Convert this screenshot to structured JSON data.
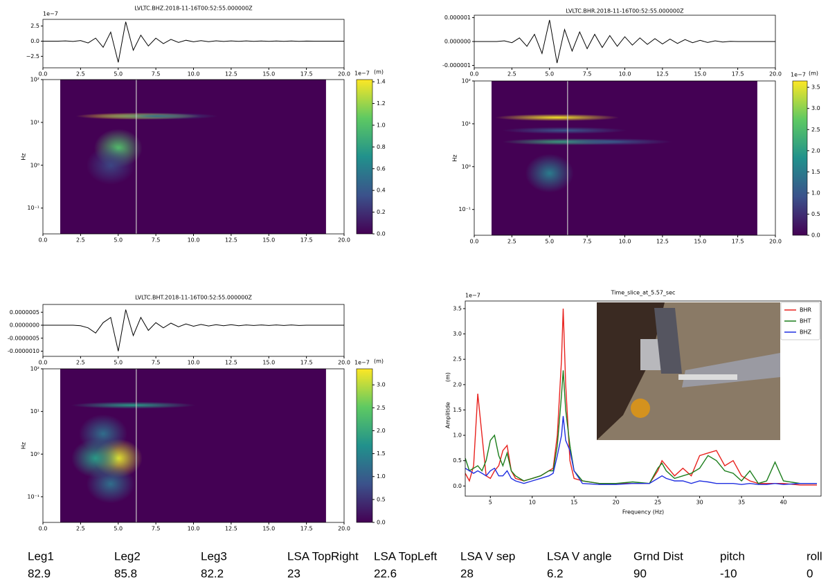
{
  "chart_data": [
    {
      "type": "line",
      "title": "LVLTC.BHZ.2018-11-16T00:52:55.000000Z",
      "y_offset_label": "1e−7",
      "color": "#000000",
      "x": [
        0,
        0.5,
        1,
        1.5,
        2,
        2.5,
        3,
        3.5,
        4,
        4.5,
        5,
        5.5,
        6,
        6.5,
        7,
        7.5,
        8,
        8.5,
        9,
        9.5,
        10,
        10.5,
        11,
        11.5,
        12,
        12.5,
        13,
        13.5,
        14,
        14.5,
        15,
        15.5,
        16,
        16.5,
        17,
        17.5,
        18,
        18.5,
        19,
        19.5,
        20
      ],
      "values": [
        0,
        0,
        0,
        0.05,
        -0.05,
        0.1,
        -0.3,
        0.5,
        -1.0,
        1.5,
        -3.5,
        3.2,
        -1.5,
        1.0,
        -0.8,
        0.5,
        -0.4,
        0.3,
        -0.2,
        0.15,
        -0.1,
        0.08,
        -0.08,
        0.06,
        -0.05,
        0.05,
        -0.04,
        0.04,
        -0.03,
        0.03,
        -0.03,
        0.02,
        -0.02,
        0.02,
        -0.02,
        0.01,
        0,
        0,
        0,
        0,
        0
      ],
      "xlim": [
        0,
        20
      ],
      "xticks": [
        {
          "value": 0,
          "label": "0.0"
        },
        2.5,
        {
          "value": 5,
          "label": "5.0"
        },
        7.5,
        {
          "value": 10,
          "label": "10.0"
        },
        12.5,
        {
          "value": 15,
          "label": "15.0"
        },
        17.5,
        {
          "value": 20,
          "label": "20.0"
        }
      ],
      "ylim": [
        -4.4,
        3.6
      ],
      "yticks": [
        {
          "value": -2.5,
          "label": "−2.5"
        },
        {
          "value": 0,
          "label": "0.0"
        },
        2.5
      ]
    },
    {
      "type": "heatmap",
      "ylabel": "Hz",
      "log_y": true,
      "time_range": [
        1.15,
        18.8
      ],
      "marker_x": 6.2,
      "x": [
        6.3,
        5.0,
        4.5,
        7.5
      ],
      "y": [
        14,
        2.5,
        1.0,
        14
      ],
      "values": [
        1.42,
        1.0,
        0.3,
        0.5
      ],
      "xlim": [
        0,
        20
      ],
      "xticks": [
        {
          "value": 0,
          "label": "0.0"
        },
        2.5,
        {
          "value": 5,
          "label": "5.0"
        },
        7.5,
        {
          "value": 10,
          "label": "10.0"
        },
        12.5,
        {
          "value": 15,
          "label": "15.0"
        },
        17.5,
        {
          "value": 20,
          "label": "20.0"
        }
      ],
      "ylim": [
        0.025,
        100
      ],
      "yticks": [
        {
          "value": 0.1,
          "label": "10⁻¹"
        },
        {
          "value": 1,
          "label": "10⁰"
        },
        {
          "value": 10,
          "label": "10¹"
        },
        {
          "value": 100,
          "label": "10²"
        }
      ],
      "colorbar": {
        "label": "(m)",
        "offset_label": "1e−7",
        "lim": [
          0,
          1.42
        ],
        "ticks": [
          {
            "value": 0,
            "label": "0.0"
          },
          0.2,
          0.4,
          0.6,
          0.8,
          {
            "value": 1,
            "label": "1.0"
          },
          1.2,
          1.4
        ]
      }
    },
    {
      "type": "line",
      "title": "LVLTC.BHR.2018-11-16T00:52:55.000000Z",
      "color": "#000000",
      "x": [
        0,
        0.5,
        1,
        1.5,
        2,
        2.5,
        3,
        3.5,
        4,
        4.5,
        5,
        5.5,
        6,
        6.5,
        7,
        7.5,
        8,
        8.5,
        9,
        9.5,
        10,
        10.5,
        11,
        11.5,
        12,
        12.5,
        13,
        13.5,
        14,
        14.5,
        15,
        15.5,
        16,
        16.5,
        17,
        17.5,
        18,
        18.5,
        19,
        19.5,
        20
      ],
      "values": [
        0,
        0,
        0,
        0,
        3e-08,
        -5e-08,
        1.5e-07,
        -2e-07,
        3e-07,
        -5e-07,
        9e-07,
        -9e-07,
        5e-07,
        -4e-07,
        4e-07,
        -3e-07,
        3e-07,
        -2.5e-07,
        2.5e-07,
        -2e-07,
        2e-07,
        -1.5e-07,
        1.5e-07,
        -1.2e-07,
        1.2e-07,
        -1e-07,
        1e-07,
        -8e-08,
        8e-08,
        -5e-08,
        5e-08,
        -4e-08,
        3e-08,
        -2e-08,
        1e-08,
        0,
        0,
        0,
        0,
        0,
        0
      ],
      "xlim": [
        0,
        20
      ],
      "xticks": [
        {
          "value": 0,
          "label": "0.0"
        },
        2.5,
        {
          "value": 5,
          "label": "5.0"
        },
        7.5,
        {
          "value": 10,
          "label": "10.0"
        },
        12.5,
        {
          "value": 15,
          "label": "15.0"
        },
        17.5,
        {
          "value": 20,
          "label": "20.0"
        }
      ],
      "ylim": [
        -1.1e-06,
        1.1e-06
      ],
      "yticks": [
        {
          "value": -1e-06,
          "label": "-0.000001"
        },
        {
          "value": 0,
          "label": "0.000000"
        },
        {
          "value": 1e-06,
          "label": "0.000001"
        }
      ]
    },
    {
      "type": "heatmap",
      "ylabel": "Hz",
      "log_y": true,
      "time_range": [
        1.15,
        18.8
      ],
      "marker_x": 6.2,
      "x": [
        5.5,
        5.0,
        6.0,
        9.0,
        6.0
      ],
      "y": [
        14,
        0.7,
        3.8,
        3.8,
        7
      ],
      "values": [
        3.6,
        1.5,
        2.2,
        1.0,
        1.0
      ],
      "xlim": [
        0,
        20
      ],
      "xticks": [
        {
          "value": 0,
          "label": "0.0"
        },
        2.5,
        {
          "value": 5,
          "label": "5.0"
        },
        7.5,
        {
          "value": 10,
          "label": "10.0"
        },
        12.5,
        {
          "value": 15,
          "label": "15.0"
        },
        17.5,
        {
          "value": 20,
          "label": "20.0"
        }
      ],
      "ylim": [
        0.025,
        100
      ],
      "yticks": [
        {
          "value": 0.1,
          "label": "10⁻¹"
        },
        {
          "value": 1,
          "label": "10⁰"
        },
        {
          "value": 10,
          "label": "10¹"
        },
        {
          "value": 100,
          "label": "10²"
        }
      ],
      "colorbar": {
        "label": "(m)",
        "offset_label": "1e−7",
        "lim": [
          0,
          3.65
        ],
        "ticks": [
          {
            "value": 0,
            "label": "0.0"
          },
          0.5,
          {
            "value": 1,
            "label": "1.0"
          },
          1.5,
          {
            "value": 2,
            "label": "2.0"
          },
          2.5,
          {
            "value": 3,
            "label": "3.0"
          },
          3.5
        ]
      }
    },
    {
      "type": "line",
      "title": "LVLTC.BHT.2018-11-16T00:52:55.000000Z",
      "color": "#000000",
      "x": [
        0,
        0.5,
        1,
        1.5,
        2,
        2.5,
        3,
        3.5,
        4,
        4.5,
        5,
        5.5,
        6,
        6.5,
        7,
        7.5,
        8,
        8.5,
        9,
        9.5,
        10,
        10.5,
        11,
        11.5,
        12,
        12.5,
        13,
        13.5,
        14,
        14.5,
        15,
        15.5,
        16,
        16.5,
        17,
        17.5,
        18,
        18.5,
        19,
        19.5,
        20
      ],
      "values": [
        0,
        0,
        0,
        0,
        0,
        -2e-08,
        -1e-07,
        -3e-07,
        1e-07,
        3e-07,
        -1e-06,
        6e-07,
        -4e-07,
        3e-07,
        -2e-07,
        1e-07,
        -1e-07,
        8e-08,
        -6e-08,
        5e-08,
        -4e-08,
        3e-08,
        -3e-08,
        2e-08,
        -2e-08,
        2e-08,
        -2e-08,
        1e-08,
        -1e-08,
        1e-08,
        -1e-08,
        1e-08,
        -1e-08,
        1e-08,
        -1e-08,
        0,
        0,
        0,
        0,
        0,
        0
      ],
      "xlim": [
        0,
        20
      ],
      "xticks": [
        {
          "value": 0,
          "label": "0.0"
        },
        2.5,
        {
          "value": 5,
          "label": "5.0"
        },
        7.5,
        {
          "value": 10,
          "label": "10.0"
        },
        12.5,
        {
          "value": 15,
          "label": "15.0"
        },
        17.5,
        {
          "value": 20,
          "label": "20.0"
        }
      ],
      "ylim": [
        -1.2e-06,
        8e-07
      ],
      "yticks": [
        {
          "value": -1e-06,
          "label": "-0.0000010"
        },
        {
          "value": -5e-07,
          "label": "-0.0000005"
        },
        {
          "value": 0,
          "label": "0.0000000"
        },
        {
          "value": 5e-07,
          "label": "0.0000005"
        }
      ]
    },
    {
      "type": "heatmap",
      "ylabel": "Hz",
      "log_y": true,
      "time_range": [
        1.15,
        18.8
      ],
      "marker_x": 6.2,
      "x": [
        5.0,
        3.5,
        6.0,
        4.0,
        4.5
      ],
      "y": [
        0.8,
        0.8,
        14,
        3,
        0.2
      ],
      "values": [
        3.2,
        1.8,
        1.8,
        1.2,
        1.2
      ],
      "xlim": [
        0,
        20
      ],
      "xticks": [
        {
          "value": 0,
          "label": "0.0"
        },
        2.5,
        {
          "value": 5,
          "label": "5.0"
        },
        7.5,
        {
          "value": 10,
          "label": "10.0"
        },
        12.5,
        {
          "value": 15,
          "label": "15.0"
        },
        17.5,
        {
          "value": 20,
          "label": "20.0"
        }
      ],
      "ylim": [
        0.025,
        100
      ],
      "yticks": [
        {
          "value": 0.1,
          "label": "10⁻¹"
        },
        {
          "value": 1,
          "label": "10⁰"
        },
        {
          "value": 10,
          "label": "10¹"
        },
        {
          "value": 100,
          "label": "10²"
        }
      ],
      "colorbar": {
        "label": "(m)",
        "offset_label": "1e−7",
        "lim": [
          0,
          3.35
        ],
        "ticks": [
          {
            "value": 0,
            "label": "0.0"
          },
          0.5,
          {
            "value": 1,
            "label": "1.0"
          },
          1.5,
          {
            "value": 2,
            "label": "2.0"
          },
          2.5,
          {
            "value": 3,
            "label": "3.0"
          }
        ]
      }
    },
    {
      "type": "multiline",
      "title": "Time_slice_at_5.57_sec",
      "xlabel": "Frequency (Hz)",
      "ylabel": "Amplitide",
      "yunit": "(m)",
      "y_offset_label": "1e−7",
      "legend": "upper right",
      "x": [
        2,
        2.5,
        3,
        3.5,
        4,
        4.5,
        5,
        5.5,
        6,
        6.5,
        7,
        7.5,
        8,
        9,
        10,
        11,
        12,
        12.5,
        13,
        13.5,
        13.7,
        14,
        14.5,
        15,
        16,
        18,
        20,
        22,
        24,
        25,
        25.5,
        26,
        27,
        28,
        29,
        30,
        31,
        32,
        33,
        34,
        35,
        36,
        37,
        38,
        39,
        40,
        42,
        44
      ],
      "series": [
        {
          "name": "BHR",
          "color": "#e8211d",
          "values": [
            0.25,
            0.1,
            0.4,
            1.82,
            1.0,
            0.2,
            0.15,
            0.3,
            0.4,
            0.7,
            0.8,
            0.3,
            0.15,
            0.1,
            0.15,
            0.2,
            0.3,
            0.35,
            1.0,
            2.5,
            3.5,
            2.0,
            0.5,
            0.15,
            0.1,
            0.05,
            0.05,
            0.05,
            0.05,
            0.3,
            0.5,
            0.4,
            0.2,
            0.35,
            0.2,
            0.6,
            0.65,
            0.7,
            0.4,
            0.5,
            0.2,
            0.1,
            0.05,
            0.05,
            0.05,
            0.05,
            0.02,
            0.02
          ]
        },
        {
          "name": "BHT",
          "color": "#1a7d1a",
          "values": [
            0.55,
            0.3,
            0.35,
            0.4,
            0.3,
            0.5,
            0.9,
            1.0,
            0.6,
            0.4,
            0.65,
            0.3,
            0.2,
            0.1,
            0.15,
            0.2,
            0.3,
            0.3,
            0.8,
            1.8,
            2.28,
            1.5,
            0.8,
            0.3,
            0.1,
            0.05,
            0.05,
            0.08,
            0.05,
            0.35,
            0.45,
            0.3,
            0.15,
            0.2,
            0.25,
            0.35,
            0.6,
            0.5,
            0.3,
            0.25,
            0.1,
            0.3,
            0.05,
            0.1,
            0.47,
            0.1,
            0.05,
            0.05
          ]
        },
        {
          "name": "BHZ",
          "color": "#1f2ee0",
          "values": [
            0.35,
            0.3,
            0.25,
            0.3,
            0.25,
            0.2,
            0.3,
            0.35,
            0.2,
            0.2,
            0.3,
            0.15,
            0.1,
            0.05,
            0.1,
            0.15,
            0.2,
            0.25,
            0.6,
            1.0,
            1.38,
            0.9,
            0.7,
            0.3,
            0.05,
            0.03,
            0.03,
            0.05,
            0.05,
            0.15,
            0.2,
            0.15,
            0.1,
            0.1,
            0.05,
            0.1,
            0.08,
            0.05,
            0.05,
            0.05,
            0.03,
            0.05,
            0.03,
            0.03,
            0.05,
            0.03,
            0.05,
            0.05
          ]
        }
      ],
      "xlim": [
        2,
        44.5
      ],
      "xticks": [
        5,
        10,
        15,
        20,
        25,
        30,
        35,
        40
      ],
      "ylim": [
        -0.2,
        3.65
      ],
      "yticks": [
        {
          "value": 0,
          "label": "0.0"
        },
        0.5,
        {
          "value": 1,
          "label": "1.0"
        },
        1.5,
        {
          "value": 2,
          "label": "2.0"
        },
        2.5,
        {
          "value": 3,
          "label": "3.0"
        },
        3.5
      ]
    }
  ],
  "parameters": {
    "headers": [
      "Leg1",
      "Leg2",
      "Leg3",
      "LSA TopRight",
      "LSA TopLeft",
      "LSA V sep",
      "LSA V angle",
      "Grnd Dist",
      "pitch",
      "roll"
    ],
    "values": [
      82.9,
      85.8,
      82.2,
      23,
      22.6,
      28,
      6.2,
      90,
      -10,
      0
    ]
  }
}
